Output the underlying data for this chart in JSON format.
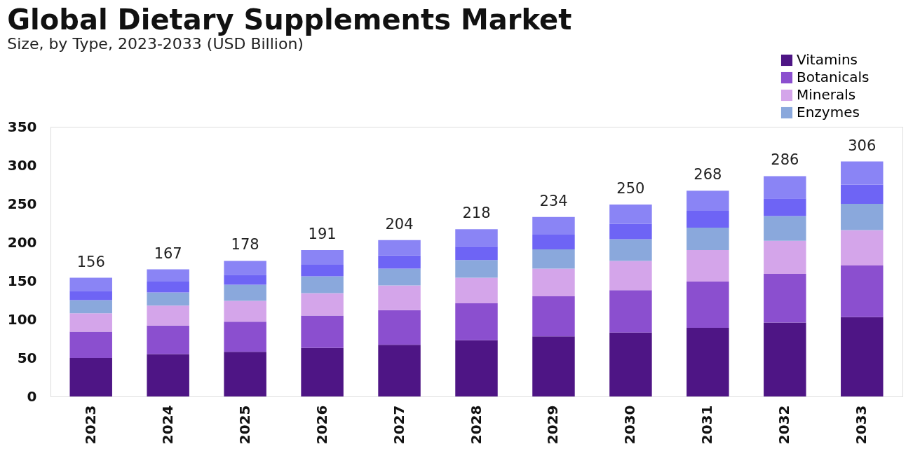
{
  "chart_data": {
    "type": "bar",
    "title": "Global Dietary Supplements Market",
    "subtitle": "Size, by Type, 2023-2033 (USD Billion)",
    "categories": [
      "2023",
      "2024",
      "2025",
      "2026",
      "2027",
      "2028",
      "2029",
      "2030",
      "2031",
      "2032",
      "2033"
    ],
    "stacked": true,
    "series": [
      {
        "name": "Vitamins",
        "color": "#4e1585",
        "values": [
          50,
          55,
          58,
          63,
          67,
          73,
          78,
          83,
          89,
          96,
          103
        ]
      },
      {
        "name": "Botanicals",
        "color": "#8b4fcf",
        "values": [
          34,
          37,
          39,
          42,
          45,
          48,
          52,
          55,
          60,
          63,
          67
        ]
      },
      {
        "name": "Minerals",
        "color": "#d4a5ea",
        "values": [
          24,
          26,
          27,
          29,
          32,
          33,
          36,
          38,
          41,
          43,
          46
        ]
      },
      {
        "name": "Enzymes",
        "color": "#8aa8dc",
        "values": [
          17,
          17,
          21,
          22,
          22,
          23,
          25,
          28,
          29,
          32,
          34
        ]
      },
      {
        "color": "#6e64f5",
        "values": [
          12,
          14,
          13,
          15,
          17,
          18,
          19,
          20,
          22,
          23,
          25
        ]
      },
      {
        "color": "#8a84f5",
        "values": [
          17,
          16,
          18,
          19,
          20,
          22,
          23,
          25,
          26,
          29,
          30
        ]
      }
    ],
    "totals": [
      "156",
      "167",
      "178",
      "191",
      "204",
      "218",
      "234",
      "250",
      "268",
      "286",
      "306"
    ],
    "ylim": [
      0,
      350
    ],
    "yticks": [
      0,
      50,
      100,
      150,
      200,
      250,
      300,
      350
    ],
    "grid": false,
    "legend": "top right"
  }
}
